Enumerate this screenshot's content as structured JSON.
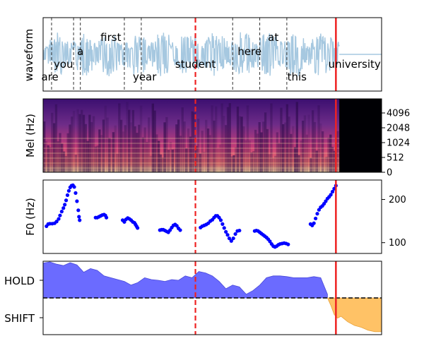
{
  "colors": {
    "waveform": "#a6c8e0",
    "mel_low": "#000004",
    "mel_high": "#fcfdbf",
    "f0_points": "#0000ff",
    "hold_fill": "#6b6bff",
    "shift_fill": "#ffc266",
    "marker_red": "#ee2222",
    "word_boundary": "#333333"
  },
  "chart_data": [
    {
      "type": "area",
      "panel": "waveform",
      "ylabel": "waveform",
      "grid": false,
      "words": [
        {
          "text": "are",
          "t": 0.02
        },
        {
          "text": "you",
          "t": 0.06
        },
        {
          "text": "a",
          "t": 0.11
        },
        {
          "text": "first",
          "t": 0.2
        },
        {
          "text": "year",
          "t": 0.3
        },
        {
          "text": "student",
          "t": 0.45
        },
        {
          "text": "here",
          "t": 0.61
        },
        {
          "text": "at",
          "t": 0.68
        },
        {
          "text": "this",
          "t": 0.75
        },
        {
          "text": "university",
          "t": 0.92
        }
      ],
      "word_boundaries": [
        0.025,
        0.09,
        0.11,
        0.24,
        0.29,
        0.56,
        0.64,
        0.72
      ],
      "dashed_marker": 0.45,
      "solid_marker": 0.865,
      "signal_end": 0.875
    },
    {
      "type": "heatmap",
      "panel": "mel",
      "ylabel": "Mel (Hz)",
      "y_ticks": [
        "0",
        "512",
        "1024",
        "2048",
        "4096"
      ],
      "active_end": 0.875,
      "dashed_marker": 0.45,
      "solid_marker": 0.865
    },
    {
      "type": "scatter",
      "panel": "f0",
      "ylabel": "F0 (Hz)",
      "ylim": [
        75,
        245
      ],
      "y_ticks": [
        100,
        200
      ],
      "dashed_marker": 0.45,
      "solid_marker": 0.865,
      "points": [
        [
          0.01,
          138
        ],
        [
          0.015,
          143
        ],
        [
          0.02,
          144
        ],
        [
          0.027,
          144
        ],
        [
          0.034,
          145
        ],
        [
          0.04,
          149
        ],
        [
          0.046,
          155
        ],
        [
          0.05,
          163
        ],
        [
          0.055,
          172
        ],
        [
          0.06,
          180
        ],
        [
          0.064,
          188
        ],
        [
          0.068,
          198
        ],
        [
          0.072,
          210
        ],
        [
          0.076,
          220
        ],
        [
          0.08,
          228
        ],
        [
          0.084,
          232
        ],
        [
          0.088,
          233
        ],
        [
          0.092,
          229
        ],
        [
          0.096,
          215
        ],
        [
          0.1,
          196
        ],
        [
          0.104,
          175
        ],
        [
          0.106,
          160
        ],
        [
          0.108,
          152
        ],
        [
          0.155,
          158
        ],
        [
          0.16,
          158
        ],
        [
          0.165,
          160
        ],
        [
          0.17,
          162
        ],
        [
          0.175,
          164
        ],
        [
          0.18,
          165
        ],
        [
          0.184,
          163
        ],
        [
          0.187,
          158
        ],
        [
          0.235,
          152
        ],
        [
          0.24,
          148
        ],
        [
          0.245,
          154
        ],
        [
          0.25,
          157
        ],
        [
          0.255,
          155
        ],
        [
          0.26,
          152
        ],
        [
          0.265,
          148
        ],
        [
          0.27,
          146
        ],
        [
          0.273,
          142
        ],
        [
          0.276,
          138
        ],
        [
          0.279,
          134
        ],
        [
          0.345,
          129
        ],
        [
          0.35,
          130
        ],
        [
          0.355,
          130
        ],
        [
          0.36,
          128
        ],
        [
          0.365,
          126
        ],
        [
          0.37,
          124
        ],
        [
          0.375,
          129
        ],
        [
          0.38,
          135
        ],
        [
          0.385,
          140
        ],
        [
          0.39,
          142
        ],
        [
          0.395,
          139
        ],
        [
          0.4,
          133
        ],
        [
          0.405,
          129
        ],
        [
          0.465,
          135
        ],
        [
          0.47,
          138
        ],
        [
          0.476,
          140
        ],
        [
          0.482,
          142
        ],
        [
          0.488,
          145
        ],
        [
          0.494,
          150
        ],
        [
          0.5,
          153
        ],
        [
          0.505,
          158
        ],
        [
          0.51,
          162
        ],
        [
          0.515,
          162
        ],
        [
          0.52,
          158
        ],
        [
          0.525,
          152
        ],
        [
          0.53,
          143
        ],
        [
          0.535,
          134
        ],
        [
          0.54,
          125
        ],
        [
          0.545,
          118
        ],
        [
          0.55,
          110
        ],
        [
          0.556,
          104
        ],
        [
          0.562,
          110
        ],
        [
          0.568,
          120
        ],
        [
          0.574,
          127
        ],
        [
          0.58,
          128
        ],
        [
          0.625,
          127
        ],
        [
          0.63,
          128
        ],
        [
          0.635,
          127
        ],
        [
          0.64,
          124
        ],
        [
          0.645,
          121
        ],
        [
          0.65,
          118
        ],
        [
          0.655,
          115
        ],
        [
          0.66,
          112
        ],
        [
          0.665,
          108
        ],
        [
          0.67,
          103
        ],
        [
          0.675,
          97
        ],
        [
          0.68,
          92
        ],
        [
          0.685,
          90
        ],
        [
          0.69,
          92
        ],
        [
          0.695,
          95
        ],
        [
          0.7,
          97
        ],
        [
          0.706,
          98
        ],
        [
          0.712,
          99
        ],
        [
          0.718,
          98
        ],
        [
          0.724,
          96
        ],
        [
          0.79,
          143
        ],
        [
          0.795,
          140
        ],
        [
          0.8,
          145
        ],
        [
          0.805,
          156
        ],
        [
          0.81,
          167
        ],
        [
          0.815,
          176
        ],
        [
          0.82,
          182
        ],
        [
          0.825,
          185
        ],
        [
          0.83,
          190
        ],
        [
          0.835,
          196
        ],
        [
          0.84,
          202
        ],
        [
          0.845,
          206
        ],
        [
          0.85,
          211
        ],
        [
          0.855,
          218
        ],
        [
          0.86,
          225
        ],
        [
          0.865,
          232
        ]
      ]
    },
    {
      "type": "area",
      "panel": "turn",
      "y_tick_labels": [
        "HOLD",
        "SHIFT"
      ],
      "ylim": [
        -1,
        1
      ],
      "threshold": 0,
      "dashed_marker": 0.45,
      "solid_marker": 0.865,
      "series": [
        {
          "name": "HOLD",
          "x": [
            0.0,
            0.02,
            0.04,
            0.06,
            0.08,
            0.1,
            0.12,
            0.14,
            0.16,
            0.18,
            0.2,
            0.22,
            0.24,
            0.26,
            0.28,
            0.3,
            0.32,
            0.34,
            0.36,
            0.38,
            0.4,
            0.42,
            0.44,
            0.46,
            0.48,
            0.5,
            0.52,
            0.54,
            0.56,
            0.58,
            0.6,
            0.62,
            0.64,
            0.66,
            0.68,
            0.7,
            0.72,
            0.74,
            0.76,
            0.78,
            0.8,
            0.82,
            0.84
          ],
          "values": [
            0.95,
            0.98,
            0.92,
            0.88,
            0.96,
            0.9,
            0.7,
            0.8,
            0.75,
            0.6,
            0.55,
            0.5,
            0.45,
            0.35,
            0.42,
            0.55,
            0.5,
            0.48,
            0.45,
            0.5,
            0.48,
            0.6,
            0.55,
            0.72,
            0.68,
            0.6,
            0.45,
            0.25,
            0.35,
            0.3,
            0.1,
            0.2,
            0.35,
            0.55,
            0.6,
            0.6,
            0.58,
            0.55,
            0.55,
            0.55,
            0.58,
            0.55,
            0.1
          ]
        },
        {
          "name": "SHIFT",
          "x": [
            0.84,
            0.85,
            0.86,
            0.87,
            0.88,
            0.9,
            0.92,
            0.94,
            0.96,
            0.98,
            1.0
          ],
          "values": [
            0.0,
            -0.2,
            -0.45,
            -0.55,
            -0.5,
            -0.65,
            -0.75,
            -0.8,
            -0.88,
            -0.92,
            -0.92
          ]
        }
      ]
    }
  ]
}
